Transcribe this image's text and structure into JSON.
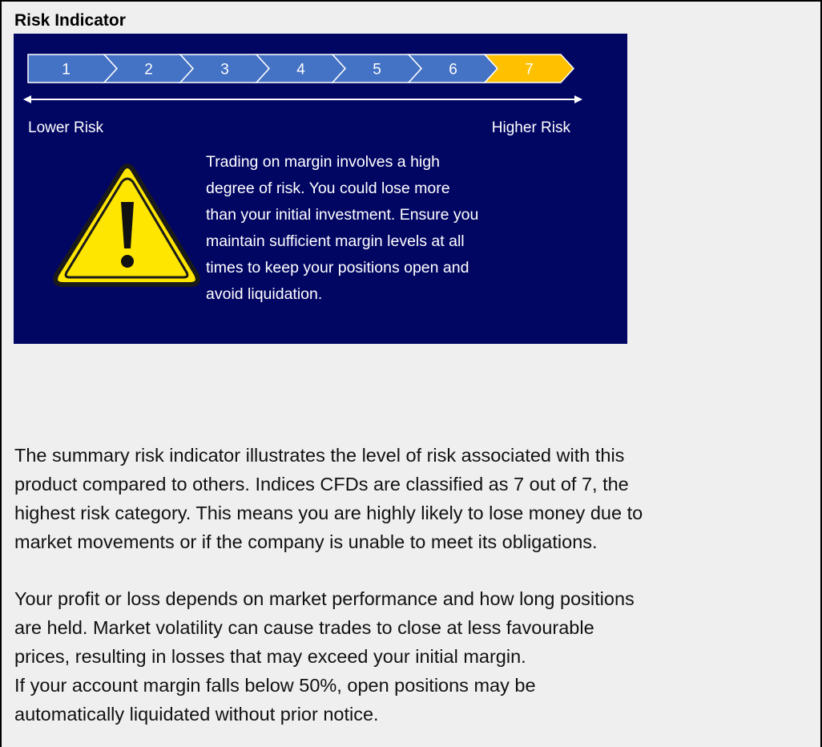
{
  "title": "Risk Indicator",
  "indicator": {
    "steps": [
      "1",
      "2",
      "3",
      "4",
      "5",
      "6",
      "7"
    ],
    "lower_label": "Lower Risk",
    "higher_label": "Higher Risk",
    "warning_lines": [
      "Trading on margin involves a high",
      "degree of risk. You could lose more",
      "than your initial investment. Ensure you",
      "maintain sufficient margin levels at all",
      "times to keep your positions open and",
      "avoid liquidation."
    ]
  },
  "paragraphs": [
    [
      "The summary risk indicator illustrates the level of risk associated with this",
      "product compared to others. Indices CFDs are classified as 7 out of 7, the",
      "highest risk category. This means you are highly likely to lose money due to",
      "market movements or if the company is unable to meet its obligations."
    ],
    [
      "Your profit or loss depends on market performance and how long positions",
      "are held. Market volatility can cause trades to close at less favourable",
      "prices, resulting in losses that may exceed your initial margin.",
      "If your account margin falls below 50%, open positions may be",
      "automatically liquidated without prior notice."
    ]
  ]
}
